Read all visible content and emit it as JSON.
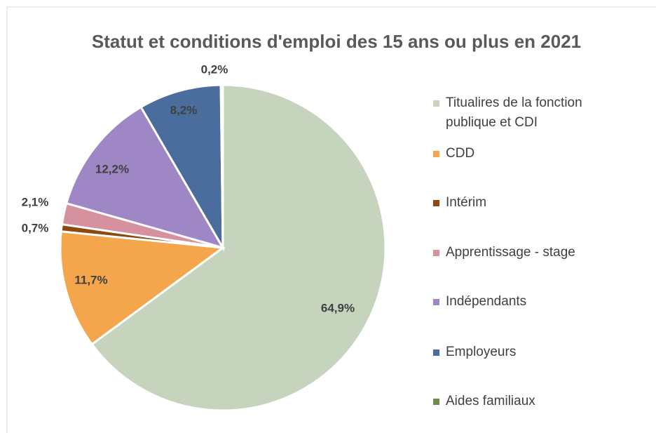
{
  "chart_data": {
    "type": "pie",
    "title": "Statut et conditions  d'emploi des 15 ans ou plus en 2021",
    "categories": [
      "Titualires de la fonction publique et CDI",
      "CDD",
      "Intérim",
      "Apprentissage - stage",
      "Indépendants",
      "Employeurs",
      "Aides familiaux"
    ],
    "values": [
      64.9,
      11.7,
      0.7,
      2.1,
      12.2,
      8.2,
      0.2
    ],
    "value_labels": [
      "64,9%",
      "11,7%",
      "0,7%",
      "2,1%",
      "12,2%",
      "8,2%",
      "0,2%"
    ],
    "colors": [
      "#c7d4bd",
      "#f3a64b",
      "#8c4a10",
      "#d6919f",
      "#9f86c4",
      "#4a6d9e",
      "#6f8b4b"
    ],
    "legend": "right"
  }
}
